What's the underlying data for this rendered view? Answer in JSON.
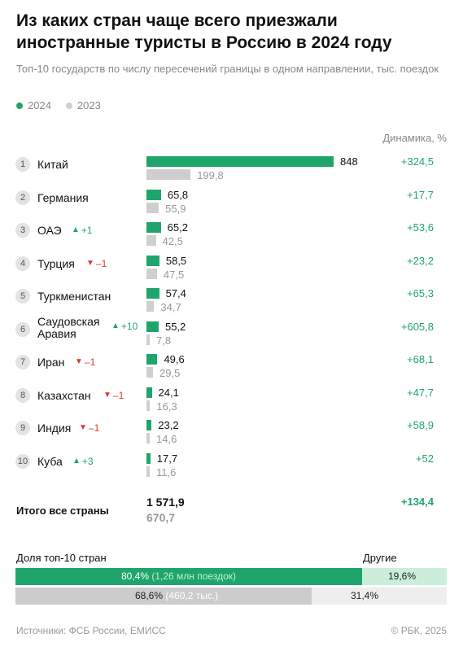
{
  "header": {
    "title": "Из каких стран чаще всего приезжали иностранные туристы в Россию в 2024 году",
    "subtitle": "Топ-10 государств по числу пересечений границы в одном направлении, тыс. поездок"
  },
  "legend": [
    {
      "label": "2024",
      "color": "#1fa56b"
    },
    {
      "label": "2023",
      "color": "#cfcfcf"
    }
  ],
  "dynamics_header": "Динамика, %",
  "chart_data": {
    "type": "bar",
    "orientation": "horizontal",
    "xlim": [
      0,
      848
    ],
    "series": [
      {
        "name": "2024",
        "color": "#1fa56b",
        "values": [
          848,
          65.8,
          65.2,
          58.5,
          57.4,
          55.2,
          49.6,
          24.1,
          23.2,
          17.7
        ]
      },
      {
        "name": "2023",
        "color": "#cfcfcf",
        "values": [
          199.8,
          55.9,
          42.5,
          47.5,
          34.7,
          7.8,
          29.5,
          16.3,
          14.6,
          11.6
        ]
      }
    ],
    "rows": [
      {
        "rank": "1",
        "country": "Китай",
        "change": "",
        "change_dir": "",
        "v2024": "848",
        "v2023": "199,8",
        "dyn": "+324,5"
      },
      {
        "rank": "2",
        "country": "Германия",
        "change": "",
        "change_dir": "",
        "v2024": "65,8",
        "v2023": "55,9",
        "dyn": "+17,7"
      },
      {
        "rank": "3",
        "country": "ОАЭ",
        "change": "+1",
        "change_dir": "up",
        "v2024": "65,2",
        "v2023": "42,5",
        "dyn": "+53,6"
      },
      {
        "rank": "4",
        "country": "Турция",
        "change": "–1",
        "change_dir": "down",
        "v2024": "58,5",
        "v2023": "47,5",
        "dyn": "+23,2"
      },
      {
        "rank": "5",
        "country": "Туркменистан",
        "change": "",
        "change_dir": "",
        "v2024": "57,4",
        "v2023": "34,7",
        "dyn": "+65,3"
      },
      {
        "rank": "6",
        "country": "Саудовская Аравия",
        "change": "+10",
        "change_dir": "up",
        "v2024": "55,2",
        "v2023": "7,8",
        "dyn": "+605,8"
      },
      {
        "rank": "7",
        "country": "Иран",
        "change": "–1",
        "change_dir": "down",
        "v2024": "49,6",
        "v2023": "29,5",
        "dyn": "+68,1"
      },
      {
        "rank": "8",
        "country": "Казахстан",
        "change": "–1",
        "change_dir": "down",
        "v2024": "24,1",
        "v2023": "16,3",
        "dyn": "+47,7"
      },
      {
        "rank": "9",
        "country": "Индия",
        "change": "–1",
        "change_dir": "down",
        "v2024": "23,2",
        "v2023": "14,6",
        "dyn": "+58,9"
      },
      {
        "rank": "10",
        "country": "Куба",
        "change": "+3",
        "change_dir": "up",
        "v2024": "17,7",
        "v2023": "11,6",
        "dyn": "+52"
      }
    ]
  },
  "totals": {
    "label": "Итого все страны",
    "v2024": "1 571,9",
    "v2023": "670,7",
    "dyn": "+134,4"
  },
  "share": {
    "label": "Доля топ-10 стран",
    "others_label": "Другие",
    "rows": [
      {
        "share": 80.4,
        "main_text": "80,4%",
        "main_note": "(1,26 млн поездок)",
        "rest_text": "19,6%",
        "main_color": "#1fa56b",
        "rest_color": "#cbeedb",
        "note_color": "#bff0d4",
        "text_color": "#ffffff"
      },
      {
        "share": 68.6,
        "main_text": "68,6%",
        "main_note": "(460,2 тыс.)",
        "rest_text": "31,4%",
        "main_color": "#cccccc",
        "rest_color": "#eeeeee",
        "note_color": "#ffffff",
        "text_color": "#222222"
      }
    ]
  },
  "footer": {
    "source": "Источники: ФСБ России, ЕМИСС",
    "copyright": "© РБК, 2025"
  }
}
